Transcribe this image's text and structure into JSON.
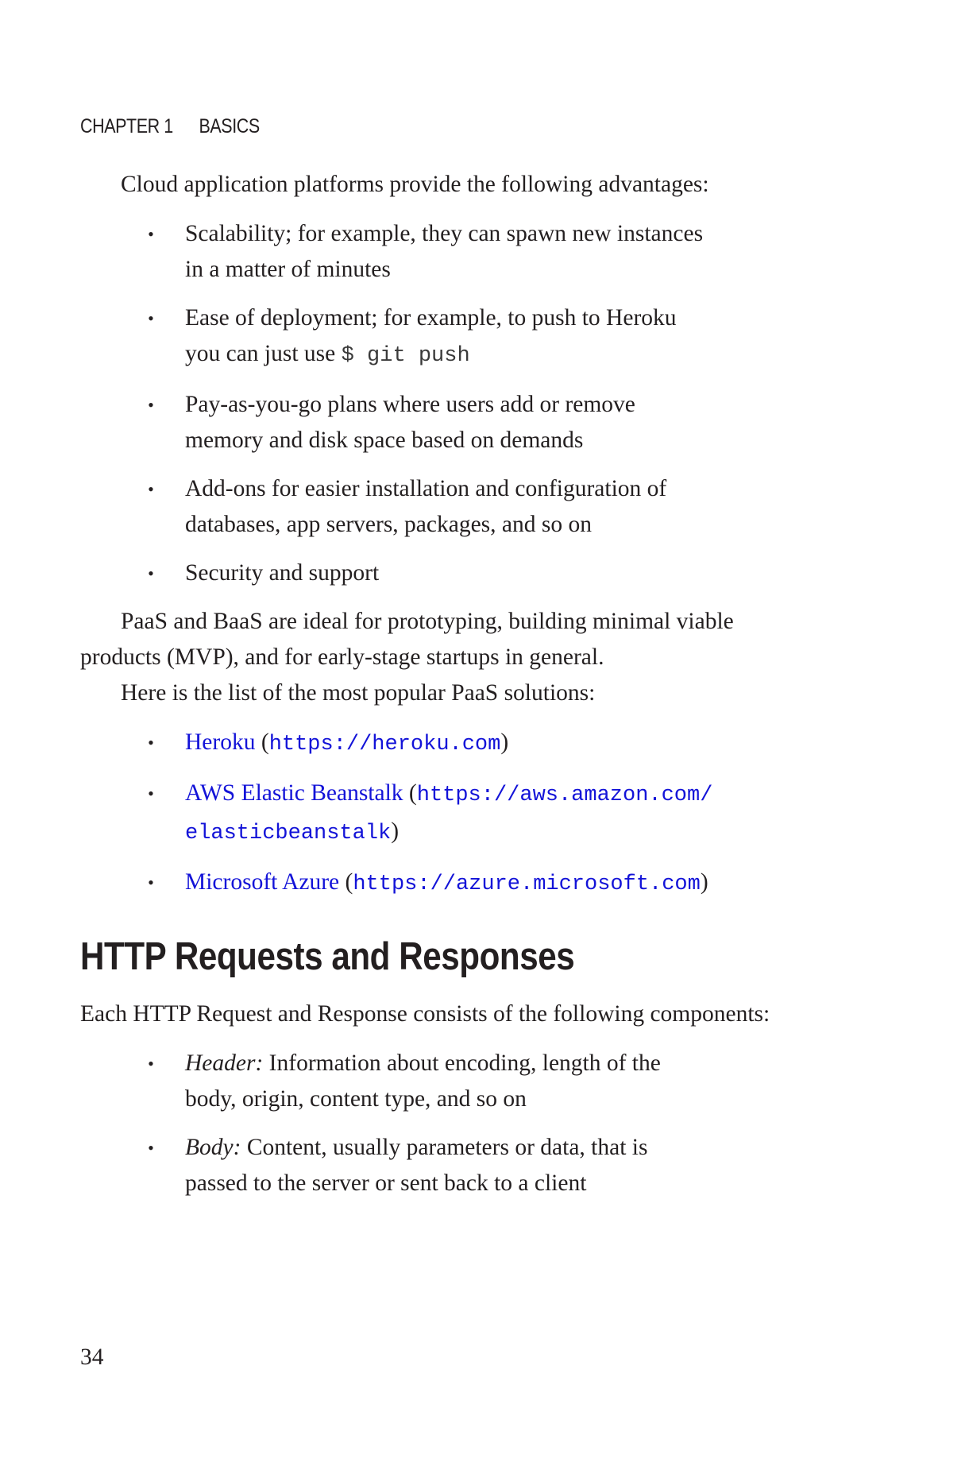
{
  "header": {
    "chapter": "CHAPTER 1",
    "section": "BASICS"
  },
  "intro": "Cloud application platforms provide the following advantages:",
  "advantages": [
    {
      "line1": "Scalability; for example, they can spawn new instances",
      "line2": "in a matter of minutes"
    },
    {
      "line1": "Ease of deployment; for example, to push to Heroku",
      "line2": "you can just use",
      "code": "$ git push"
    },
    {
      "line1": "Pay-as-you-go plans where users add or remove",
      "line2": "memory and disk space based on demands"
    },
    {
      "line1": "Add-ons for easier installation and configuration of",
      "line2": "databases, app servers, packages, and so on"
    },
    {
      "line1": "Security and support"
    }
  ],
  "paas_para_line1": "PaaS and BaaS are ideal for prototyping, building minimal viable",
  "paas_para_line2": "products (MVP), and for early-stage startups in general.",
  "list_intro": "Here is the list of the most popular PaaS solutions:",
  "solutions": [
    {
      "name": "Heroku",
      "url": "https://heroku.com"
    },
    {
      "name": "AWS Elastic Beanstalk",
      "url_line1": "https://aws.amazon.com/",
      "url_line2": "elasticbeanstalk"
    },
    {
      "name": "Microsoft Azure",
      "url": "https://azure.microsoft.com"
    }
  ],
  "section_heading": "HTTP Requests and Responses",
  "http_intro": "Each HTTP Request and Response consists of the following components:",
  "components": [
    {
      "term": "Header:",
      "line1": "Information about encoding, length of the",
      "line2": "body, origin, content type, and so on"
    },
    {
      "term": "Body:",
      "line1": "Content, usually parameters or data, that is",
      "line2": "passed to the server or sent back to a client"
    }
  ],
  "page_number": "34",
  "colors": {
    "text": "#231f20",
    "link": "#1313d8"
  }
}
